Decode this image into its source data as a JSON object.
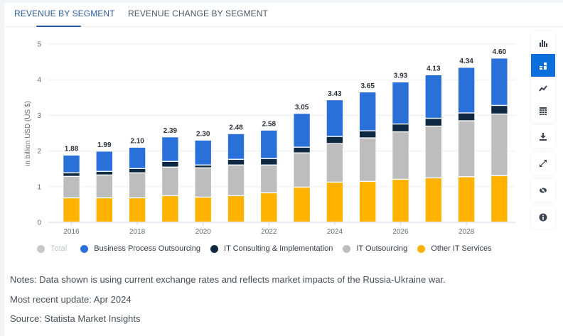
{
  "tabs": [
    {
      "label": "REVENUE BY SEGMENT",
      "active": true
    },
    {
      "label": "REVENUE CHANGE BY SEGMENT",
      "active": false
    }
  ],
  "sidebar": {
    "group1": [
      {
        "icon": "bar-chart-icon",
        "active": false
      },
      {
        "icon": "stacked-bar-chart-icon",
        "active": true
      },
      {
        "icon": "line-chart-icon",
        "active": false
      },
      {
        "icon": "table-icon",
        "active": false
      }
    ],
    "group2": [
      {
        "icon": "download-icon"
      },
      {
        "icon": "fullscreen-icon"
      },
      {
        "icon": "hide-icon"
      },
      {
        "icon": "info-icon"
      }
    ]
  },
  "chart_data": {
    "type": "bar",
    "stacked": true,
    "title": "",
    "xlabel": "",
    "ylabel": "in billion USD (US $)",
    "ylim": [
      0,
      5
    ],
    "yticks": [
      0,
      1,
      2,
      3,
      4,
      5
    ],
    "grid": true,
    "categories": [
      "2016",
      "2017",
      "2018",
      "2019",
      "2020",
      "2021",
      "2022",
      "2023",
      "2024",
      "2025",
      "2026",
      "2027",
      "2028",
      "2029"
    ],
    "xtick_labels": [
      "2016",
      "",
      "2018",
      "",
      "2020",
      "",
      "2022",
      "",
      "2024",
      "",
      "2026",
      "",
      "2028",
      ""
    ],
    "totals": [
      1.88,
      1.99,
      2.1,
      2.39,
      2.3,
      2.48,
      2.58,
      3.05,
      3.43,
      3.65,
      3.93,
      4.13,
      4.34,
      4.6
    ],
    "total_labels": [
      "1.88",
      "1.99",
      "2.10",
      "2.39",
      "2.30",
      "2.48",
      "2.58",
      "3.05",
      "3.43",
      "3.65",
      "3.93",
      "4.13",
      "4.34",
      "4.60"
    ],
    "series": [
      {
        "name": "Other IT Services",
        "color": "#ffb300",
        "values": [
          0.68,
          0.68,
          0.68,
          0.74,
          0.7,
          0.74,
          0.82,
          0.98,
          1.12,
          1.14,
          1.2,
          1.24,
          1.27,
          1.3
        ]
      },
      {
        "name": "IT Outsourcing",
        "color": "#bdbdbd",
        "values": [
          0.6,
          0.64,
          0.7,
          0.8,
          0.82,
          0.86,
          0.78,
          0.96,
          1.08,
          1.22,
          1.33,
          1.45,
          1.57,
          1.73
        ]
      },
      {
        "name": "IT Consulting & Implementation",
        "color": "#0f2942",
        "values": [
          0.1,
          0.1,
          0.12,
          0.16,
          0.08,
          0.16,
          0.18,
          0.16,
          0.2,
          0.2,
          0.22,
          0.22,
          0.22,
          0.24
        ]
      },
      {
        "name": "Business Process Outsourcing",
        "color": "#2a70d9",
        "values": [
          0.5,
          0.57,
          0.6,
          0.69,
          0.7,
          0.72,
          0.8,
          0.95,
          1.03,
          1.09,
          1.18,
          1.22,
          1.28,
          1.33
        ]
      }
    ],
    "legend": {
      "position": "bottom-left",
      "items": [
        {
          "name": "Total",
          "color": "#c8c8c8",
          "disabled": true
        },
        {
          "name": "Business Process Outsourcing",
          "color": "#2a70d9"
        },
        {
          "name": "IT Consulting & Implementation",
          "color": "#0f2942"
        },
        {
          "name": "IT Outsourcing",
          "color": "#bdbdbd"
        },
        {
          "name": "Other IT Services",
          "color": "#ffb300"
        }
      ]
    }
  },
  "notes": {
    "notes_text": "Notes: Data shown is using current exchange rates and reflects market impacts of the Russia-Ukraine war.",
    "update_text": "Most recent update: Apr 2024",
    "source_text": "Source: Statista Market Insights"
  }
}
